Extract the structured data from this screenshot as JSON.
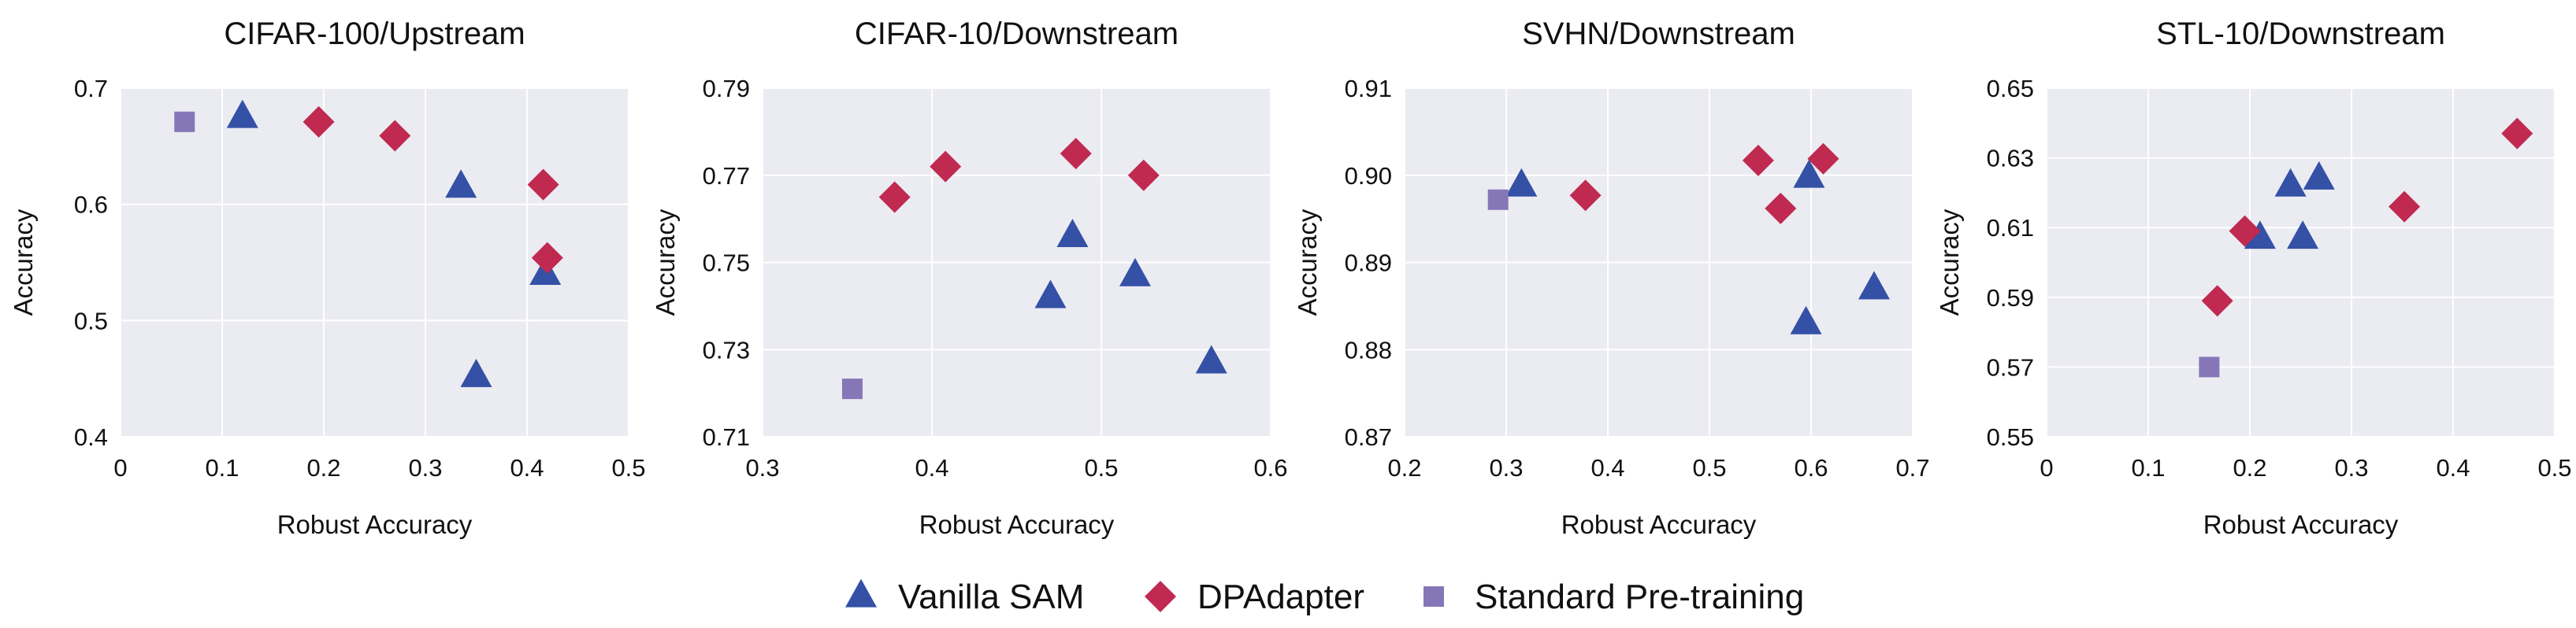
{
  "chart_data": {
    "type": "scatter",
    "xlabel": "Robust Accuracy",
    "ylabel": "Accuracy",
    "legend_position": "bottom-center",
    "series_styles": [
      {
        "name": "Vanilla SAM",
        "marker": "triangle",
        "color": "#3451a6"
      },
      {
        "name": "DPAdapter",
        "marker": "diamond",
        "color": "#c02a50"
      },
      {
        "name": "Standard Pre-training",
        "marker": "square",
        "color": "#8577b7"
      }
    ],
    "panels": [
      {
        "title": "CIFAR-100/Upstream",
        "xlim": [
          0,
          0.5
        ],
        "ylim": [
          0.4,
          0.7
        ],
        "xticks": [
          "0",
          "0.1",
          "0.2",
          "0.3",
          "0.4",
          "0.5"
        ],
        "yticks": [
          "0.4",
          "0.5",
          "0.6",
          "0.7"
        ],
        "series": [
          {
            "name": "Vanilla SAM",
            "points": [
              [
                0.12,
                0.675
              ],
              [
                0.335,
                0.615
              ],
              [
                0.418,
                0.54
              ],
              [
                0.35,
                0.452
              ]
            ]
          },
          {
            "name": "DPAdapter",
            "points": [
              [
                0.195,
                0.671
              ],
              [
                0.27,
                0.659
              ],
              [
                0.416,
                0.617
              ],
              [
                0.42,
                0.554
              ]
            ]
          },
          {
            "name": "Standard Pre-training",
            "points": [
              [
                0.063,
                0.671
              ]
            ]
          }
        ]
      },
      {
        "title": "CIFAR-10/Downstream",
        "xlim": [
          0.3,
          0.6
        ],
        "ylim": [
          0.71,
          0.79
        ],
        "xticks": [
          "0.3",
          "0.4",
          "0.5",
          "0.6"
        ],
        "yticks": [
          "0.71",
          "0.73",
          "0.75",
          "0.77",
          "0.79"
        ],
        "series": [
          {
            "name": "Vanilla SAM",
            "points": [
              [
                0.483,
                0.756
              ],
              [
                0.47,
                0.742
              ],
              [
                0.52,
                0.747
              ],
              [
                0.565,
                0.727
              ]
            ]
          },
          {
            "name": "DPAdapter",
            "points": [
              [
                0.378,
                0.765
              ],
              [
                0.408,
                0.772
              ],
              [
                0.485,
                0.775
              ],
              [
                0.525,
                0.77
              ]
            ]
          },
          {
            "name": "Standard Pre-training",
            "points": [
              [
                0.353,
                0.721
              ]
            ]
          }
        ]
      },
      {
        "title": "SVHN/Downstream",
        "xlim": [
          0.2,
          0.7
        ],
        "ylim": [
          0.87,
          0.91
        ],
        "xticks": [
          "0.2",
          "0.3",
          "0.4",
          "0.5",
          "0.6",
          "0.7"
        ],
        "yticks": [
          "0.87",
          "0.88",
          "0.89",
          "0.90",
          "0.91"
        ],
        "series": [
          {
            "name": "Vanilla SAM",
            "points": [
              [
                0.315,
                0.8988
              ],
              [
                0.598,
                0.8998
              ],
              [
                0.662,
                0.887
              ],
              [
                0.595,
                0.883
              ]
            ]
          },
          {
            "name": "DPAdapter",
            "points": [
              [
                0.378,
                0.8977
              ],
              [
                0.548,
                0.9017
              ],
              [
                0.612,
                0.9019
              ],
              [
                0.57,
                0.8962
              ]
            ]
          },
          {
            "name": "Standard Pre-training",
            "points": [
              [
                0.292,
                0.8972
              ]
            ]
          }
        ]
      },
      {
        "title": "STL-10/Downstream",
        "xlim": [
          0,
          0.5
        ],
        "ylim": [
          0.55,
          0.65
        ],
        "xticks": [
          "0",
          "0.1",
          "0.2",
          "0.3",
          "0.4",
          "0.5"
        ],
        "yticks": [
          "0.55",
          "0.57",
          "0.59",
          "0.61",
          "0.63",
          "0.65"
        ],
        "series": [
          {
            "name": "Vanilla SAM",
            "points": [
              [
                0.21,
                0.607
              ],
              [
                0.24,
                0.622
              ],
              [
                0.252,
                0.607
              ],
              [
                0.268,
                0.624
              ]
            ]
          },
          {
            "name": "DPAdapter",
            "points": [
              [
                0.168,
                0.589
              ],
              [
                0.195,
                0.609
              ],
              [
                0.352,
                0.616
              ],
              [
                0.463,
                0.637
              ]
            ]
          },
          {
            "name": "Standard Pre-training",
            "points": [
              [
                0.16,
                0.57
              ]
            ]
          }
        ]
      }
    ]
  }
}
